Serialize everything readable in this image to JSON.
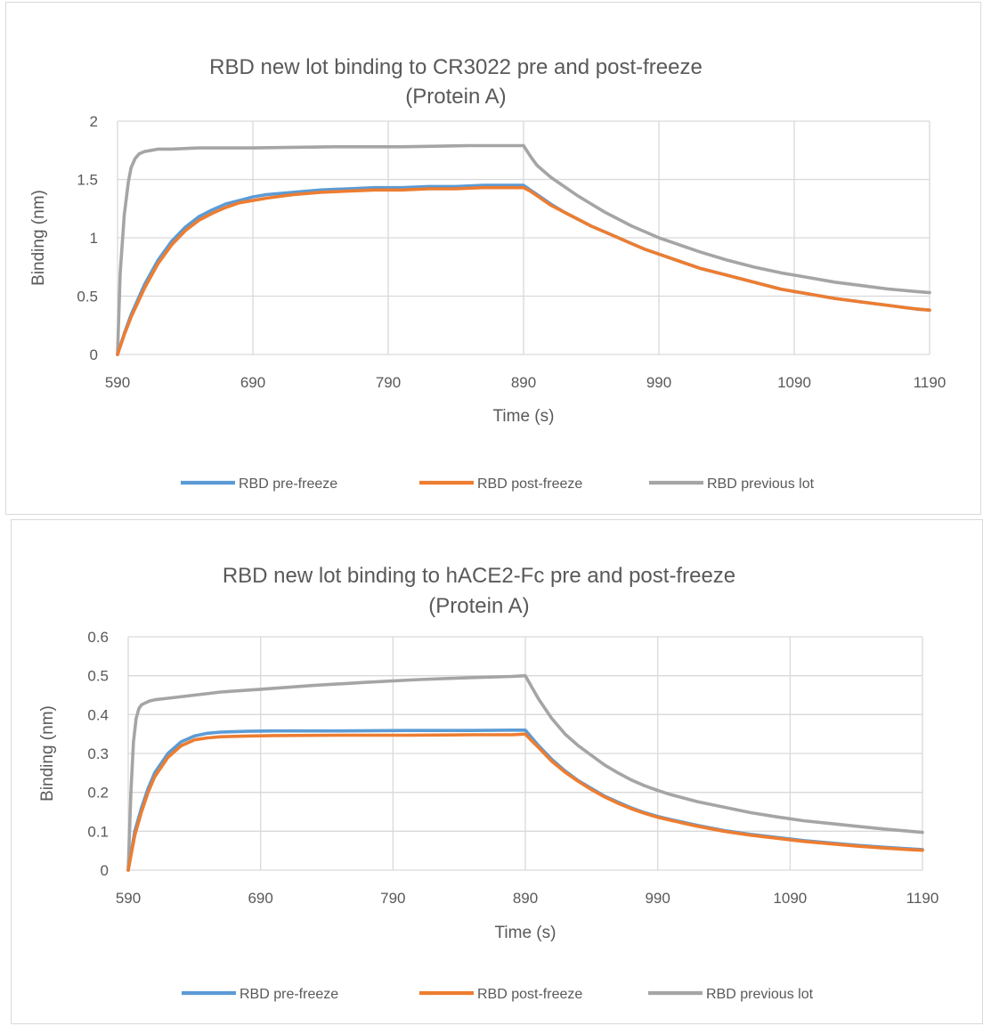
{
  "chart_data": [
    {
      "type": "line",
      "title": [
        "RBD new lot binding to CR3022 pre and post-freeze",
        "(Protein A)"
      ],
      "xlabel": "Time (s)",
      "ylabel": "Binding (nm)",
      "xlim": [
        590,
        1190
      ],
      "ylim": [
        0,
        2
      ],
      "xticks": [
        590,
        690,
        790,
        890,
        990,
        1090,
        1190
      ],
      "yticks": [
        0,
        0.5,
        1,
        1.5,
        2
      ],
      "ytick_labels": [
        "0",
        "0.5",
        "1",
        "1.5",
        "2"
      ],
      "grid": true,
      "legend_position": "bottom",
      "series": [
        {
          "name": "RBD pre-freeze",
          "color": "#5B9BD5",
          "x": [
            590,
            595,
            600,
            610,
            620,
            630,
            640,
            650,
            660,
            670,
            680,
            690,
            700,
            720,
            740,
            760,
            780,
            800,
            820,
            840,
            860,
            880,
            890,
            895,
            900,
            910,
            920,
            930,
            940,
            950,
            960,
            970,
            980,
            990,
            1000,
            1020,
            1040,
            1060,
            1080,
            1090,
            1100,
            1120,
            1140,
            1160,
            1180,
            1190
          ],
          "y": [
            0,
            0.18,
            0.34,
            0.6,
            0.81,
            0.97,
            1.09,
            1.18,
            1.24,
            1.29,
            1.32,
            1.35,
            1.37,
            1.39,
            1.41,
            1.42,
            1.43,
            1.43,
            1.44,
            1.44,
            1.45,
            1.45,
            1.45,
            1.41,
            1.37,
            1.29,
            1.22,
            1.16,
            1.1,
            1.05,
            1.0,
            0.95,
            0.9,
            0.86,
            0.82,
            0.74,
            0.68,
            0.62,
            0.56,
            0.54,
            0.52,
            0.48,
            0.45,
            0.42,
            0.39,
            0.38
          ]
        },
        {
          "name": "RBD post-freeze",
          "color": "#ED7D31",
          "x": [
            590,
            595,
            600,
            610,
            620,
            630,
            640,
            650,
            660,
            670,
            680,
            690,
            700,
            720,
            740,
            760,
            780,
            800,
            820,
            840,
            860,
            880,
            890,
            895,
            900,
            910,
            920,
            930,
            940,
            950,
            960,
            970,
            980,
            990,
            1000,
            1020,
            1040,
            1060,
            1080,
            1090,
            1100,
            1120,
            1140,
            1160,
            1180,
            1190
          ],
          "y": [
            0,
            0.17,
            0.32,
            0.57,
            0.78,
            0.94,
            1.06,
            1.15,
            1.21,
            1.26,
            1.3,
            1.32,
            1.34,
            1.37,
            1.39,
            1.4,
            1.41,
            1.41,
            1.42,
            1.42,
            1.43,
            1.43,
            1.43,
            1.4,
            1.36,
            1.28,
            1.22,
            1.16,
            1.1,
            1.05,
            1.0,
            0.95,
            0.9,
            0.86,
            0.82,
            0.74,
            0.68,
            0.62,
            0.56,
            0.54,
            0.52,
            0.48,
            0.45,
            0.42,
            0.39,
            0.38
          ]
        },
        {
          "name": "RBD previous lot",
          "color": "#A5A5A5",
          "x": [
            590,
            592,
            595,
            598,
            600,
            603,
            606,
            610,
            615,
            620,
            630,
            650,
            690,
            750,
            800,
            850,
            890,
            895,
            900,
            910,
            920,
            930,
            940,
            950,
            960,
            970,
            980,
            990,
            1000,
            1020,
            1040,
            1060,
            1080,
            1090,
            1100,
            1120,
            1140,
            1160,
            1180,
            1190
          ],
          "y": [
            0,
            0.7,
            1.2,
            1.48,
            1.6,
            1.68,
            1.72,
            1.74,
            1.75,
            1.76,
            1.76,
            1.77,
            1.77,
            1.78,
            1.78,
            1.79,
            1.79,
            1.7,
            1.62,
            1.52,
            1.44,
            1.36,
            1.29,
            1.22,
            1.16,
            1.1,
            1.05,
            1.0,
            0.96,
            0.88,
            0.81,
            0.75,
            0.7,
            0.68,
            0.66,
            0.62,
            0.59,
            0.56,
            0.54,
            0.53
          ]
        }
      ]
    },
    {
      "type": "line",
      "title": [
        "RBD new lot binding to hACE2-Fc pre and post-freeze",
        "(Protein A)"
      ],
      "xlabel": "Time (s)",
      "ylabel": "Binding (nm)",
      "xlim": [
        590,
        1190
      ],
      "ylim": [
        0,
        0.6
      ],
      "xticks": [
        590,
        690,
        790,
        890,
        990,
        1090,
        1190
      ],
      "yticks": [
        0,
        0.1,
        0.2,
        0.3,
        0.4,
        0.5,
        0.6
      ],
      "ytick_labels": [
        "0",
        "0.1",
        "0.2",
        "0.3",
        "0.4",
        "0.5",
        "0.6"
      ],
      "grid": true,
      "legend_position": "bottom",
      "series": [
        {
          "name": "RBD pre-freeze",
          "color": "#5B9BD5",
          "x": [
            590,
            595,
            600,
            605,
            610,
            620,
            630,
            640,
            650,
            660,
            680,
            700,
            750,
            800,
            850,
            880,
            890,
            895,
            900,
            910,
            920,
            930,
            940,
            950,
            960,
            970,
            980,
            990,
            1000,
            1020,
            1040,
            1060,
            1080,
            1100,
            1120,
            1140,
            1160,
            1180,
            1190
          ],
          "y": [
            0,
            0.1,
            0.16,
            0.21,
            0.25,
            0.3,
            0.33,
            0.345,
            0.352,
            0.355,
            0.357,
            0.358,
            0.358,
            0.359,
            0.359,
            0.36,
            0.36,
            0.34,
            0.32,
            0.285,
            0.255,
            0.23,
            0.21,
            0.19,
            0.175,
            0.16,
            0.148,
            0.138,
            0.13,
            0.115,
            0.102,
            0.092,
            0.084,
            0.076,
            0.07,
            0.064,
            0.059,
            0.055,
            0.053
          ]
        },
        {
          "name": "RBD post-freeze",
          "color": "#ED7D31",
          "x": [
            590,
            595,
            600,
            605,
            610,
            620,
            630,
            640,
            650,
            660,
            680,
            700,
            750,
            800,
            850,
            880,
            890,
            895,
            900,
            910,
            920,
            930,
            940,
            950,
            960,
            970,
            980,
            990,
            1000,
            1020,
            1040,
            1060,
            1080,
            1100,
            1120,
            1140,
            1160,
            1180,
            1190
          ],
          "y": [
            0,
            0.09,
            0.15,
            0.2,
            0.24,
            0.29,
            0.32,
            0.335,
            0.34,
            0.343,
            0.345,
            0.346,
            0.347,
            0.347,
            0.348,
            0.348,
            0.35,
            0.332,
            0.315,
            0.28,
            0.252,
            0.228,
            0.207,
            0.188,
            0.172,
            0.158,
            0.146,
            0.136,
            0.128,
            0.113,
            0.1,
            0.09,
            0.082,
            0.074,
            0.068,
            0.062,
            0.057,
            0.053,
            0.051
          ]
        },
        {
          "name": "RBD previous lot",
          "color": "#A5A5A5",
          "x": [
            590,
            592,
            594,
            596,
            598,
            600,
            603,
            606,
            610,
            620,
            640,
            660,
            690,
            730,
            770,
            810,
            850,
            880,
            890,
            895,
            900,
            910,
            920,
            930,
            940,
            950,
            960,
            970,
            980,
            990,
            1000,
            1020,
            1040,
            1060,
            1080,
            1100,
            1120,
            1140,
            1160,
            1180,
            1190
          ],
          "y": [
            0,
            0.2,
            0.33,
            0.39,
            0.415,
            0.425,
            0.43,
            0.435,
            0.438,
            0.442,
            0.45,
            0.458,
            0.465,
            0.475,
            0.483,
            0.49,
            0.495,
            0.498,
            0.5,
            0.47,
            0.44,
            0.39,
            0.35,
            0.32,
            0.295,
            0.27,
            0.25,
            0.232,
            0.217,
            0.205,
            0.194,
            0.176,
            0.162,
            0.148,
            0.137,
            0.127,
            0.12,
            0.113,
            0.106,
            0.1,
            0.097
          ]
        }
      ]
    }
  ]
}
